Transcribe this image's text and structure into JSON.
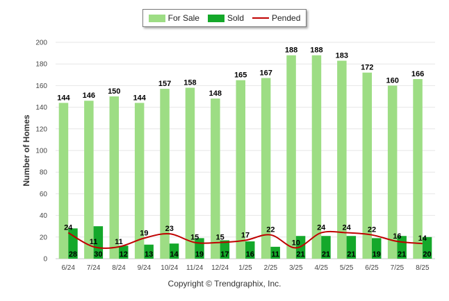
{
  "chart_data": {
    "type": "bar",
    "categories": [
      "6/24",
      "7/24",
      "8/24",
      "9/24",
      "10/24",
      "11/24",
      "12/24",
      "1/25",
      "2/25",
      "3/25",
      "4/25",
      "5/25",
      "6/25",
      "7/25",
      "8/25"
    ],
    "series": [
      {
        "name": "For Sale",
        "type": "bar",
        "color": "#9ddd84",
        "values": [
          144,
          146,
          150,
          144,
          157,
          158,
          148,
          165,
          167,
          188,
          188,
          183,
          172,
          160,
          166
        ]
      },
      {
        "name": "Sold",
        "type": "bar",
        "color": "#14a82a",
        "values": [
          28,
          30,
          12,
          13,
          14,
          19,
          17,
          16,
          11,
          21,
          21,
          21,
          19,
          21,
          20
        ]
      },
      {
        "name": "Pended",
        "type": "line",
        "color": "#c00000",
        "values": [
          24,
          11,
          11,
          19,
          23,
          15,
          15,
          17,
          22,
          10,
          24,
          24,
          22,
          16,
          14
        ]
      }
    ],
    "ylabel": "Number of Homes",
    "xlabel": "",
    "ylim": [
      0,
      200
    ],
    "yticks": [
      0,
      20,
      40,
      60,
      80,
      100,
      120,
      140,
      160,
      180,
      200
    ],
    "grid": true,
    "legend_position": "top-center"
  },
  "footer": {
    "copyright": "Copyright © Trendgraphix, Inc."
  }
}
